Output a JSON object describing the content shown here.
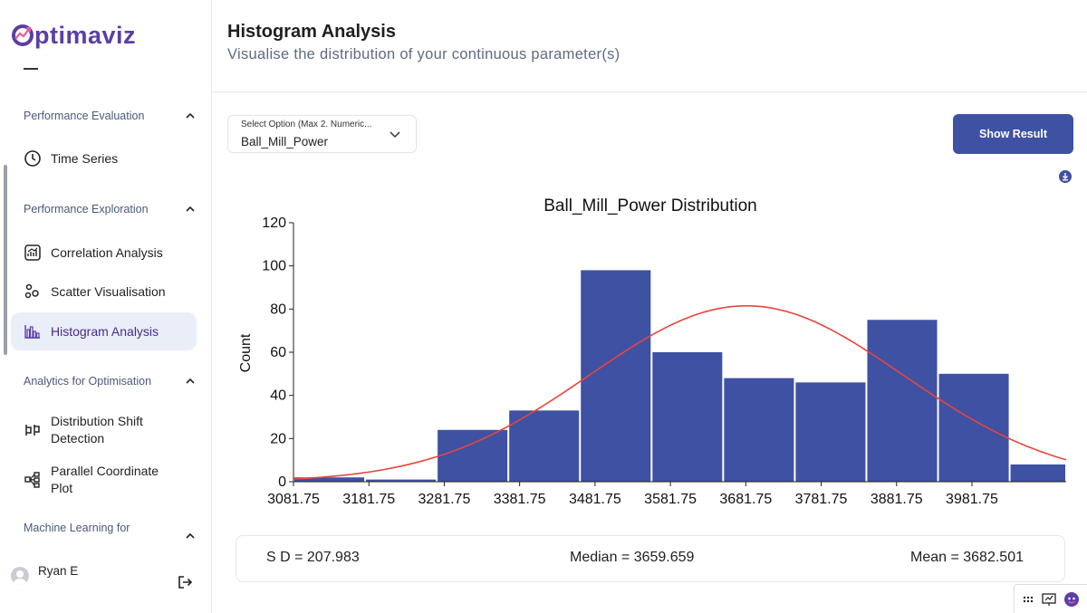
{
  "app": {
    "logo_text": "ptimaviz",
    "brand_color": "#5b3ea6",
    "accent_color": "#3f51a3"
  },
  "sidebar": {
    "sections": [
      {
        "label": "Performance Evaluation",
        "items": [
          {
            "label": "Time Series",
            "icon": "clock-icon"
          }
        ]
      },
      {
        "label": "Performance Exploration",
        "items": [
          {
            "label": "Correlation Analysis",
            "icon": "correlation-icon"
          },
          {
            "label": "Scatter Visualisation",
            "icon": "scatter-icon"
          },
          {
            "label": "Histogram Analysis",
            "icon": "histogram-icon",
            "active": true
          }
        ]
      },
      {
        "label": "Analytics for Optimisation",
        "items": [
          {
            "label_line1": "Distribution Shift",
            "label_line2": "Detection",
            "icon": "distribution-shift-icon"
          },
          {
            "label_line1": "Parallel Coordinate",
            "label_line2": "Plot",
            "icon": "parallel-coordinate-icon"
          }
        ]
      },
      {
        "label": "Machine Learning for",
        "items": []
      }
    ],
    "user": {
      "name": "Ryan E"
    }
  },
  "header": {
    "title": "Histogram Analysis",
    "subtitle": "Visualise the distribution of your continuous parameter(s)"
  },
  "controls": {
    "select_label": "Select Option (Max 2. Numeric...",
    "select_value": "Ball_Mill_Power",
    "show_result_label": "Show Result"
  },
  "chart_data": {
    "type": "bar",
    "title": "Ball_Mill_Power Distribution",
    "xlabel": "",
    "ylabel": "Count",
    "ylim": [
      0,
      120
    ],
    "yticks": [
      0,
      20,
      40,
      60,
      80,
      100,
      120
    ],
    "xlim": [
      3081.75,
      4106.75
    ],
    "xticks": [
      3081.75,
      3181.75,
      3281.75,
      3381.75,
      3481.75,
      3581.75,
      3681.75,
      3781.75,
      3881.75,
      3981.75
    ],
    "bin_edges": [
      3081.75,
      3176.75,
      3271.75,
      3366.75,
      3461.75,
      3556.75,
      3651.75,
      3746.75,
      3841.75,
      3936.75,
      4031.75,
      4126.75
    ],
    "values": [
      2,
      1,
      24,
      33,
      98,
      60,
      48,
      46,
      75,
      50,
      8
    ],
    "bar_color": "#3f51a3",
    "curve_color": "#e8453c",
    "normal_fit": {
      "mean": 3682.501,
      "sd": 207.983,
      "peak": 81.5
    }
  },
  "stats": {
    "sd": "S D = 207.983",
    "median": "Median = 3659.659",
    "mean": "Mean = 3682.501"
  }
}
